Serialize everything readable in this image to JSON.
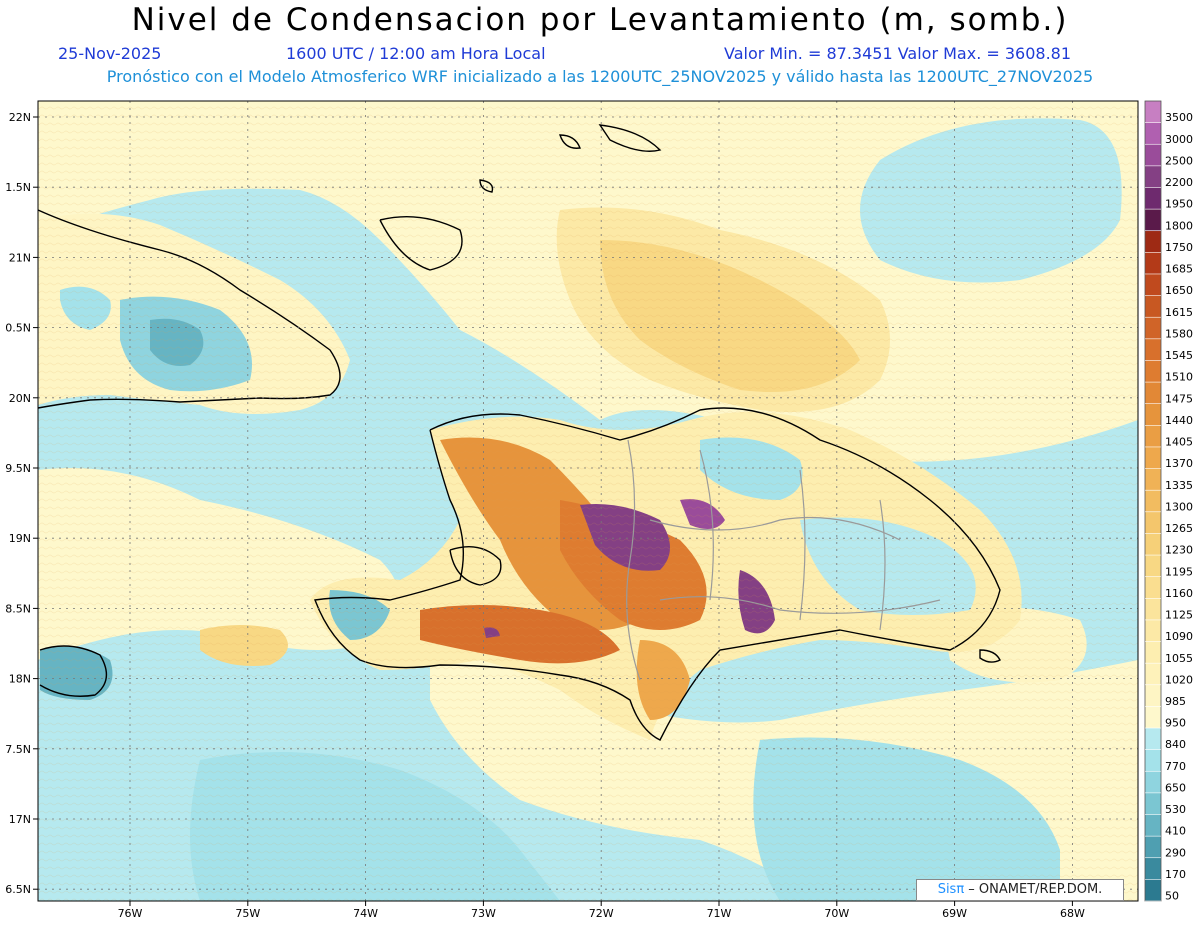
{
  "header": {
    "title": "Nivel de Condensacion por Levantamiento (m, somb.)",
    "date": "25-Nov-2025",
    "time": "1600 UTC / 12:00 am Hora Local",
    "min_max": "Valor Min. = 87.3451   Valor Max. = 3608.81",
    "forecast_line": "Pronóstico con el Modelo Atmosferico WRF inicializado a las 1200UTC_25NOV2025 y válido hasta las  1200UTC_27NOV2025"
  },
  "axes": {
    "lat_labels": [
      "22N",
      "1.5N",
      "21N",
      "0.5N",
      "20N",
      "9.5N",
      "19N",
      "8.5N",
      "18N",
      "7.5N",
      "17N",
      "6.5N"
    ],
    "lon_labels": [
      "76W",
      "75W",
      "74W",
      "73W",
      "72W",
      "71W",
      "70W",
      "69W",
      "68W"
    ]
  },
  "colorbar": {
    "levels": [
      "3500",
      "3000",
      "2500",
      "2200",
      "1950",
      "1800",
      "1750",
      "1685",
      "1650",
      "1615",
      "1580",
      "1545",
      "1510",
      "1475",
      "1440",
      "1405",
      "1370",
      "1335",
      "1300",
      "1265",
      "1230",
      "1195",
      "1160",
      "1125",
      "1090",
      "1055",
      "1020",
      "985",
      "950",
      "840",
      "770",
      "650",
      "530",
      "410",
      "290",
      "170",
      "50"
    ],
    "colors": [
      "#c77fc2",
      "#b060b0",
      "#9a4c9a",
      "#844084",
      "#6e2a6e",
      "#5a1a4a",
      "#9e2a14",
      "#b33a18",
      "#c04a1e",
      "#c85822",
      "#d06428",
      "#d8702c",
      "#de7c30",
      "#e28836",
      "#e6943c",
      "#ea9e44",
      "#eea84c",
      "#f0b256",
      "#f2bc60",
      "#f4c66c",
      "#f6d078",
      "#f8d884",
      "#fade90",
      "#fbe49c",
      "#fce9a6",
      "#fdeeb0",
      "#fef2ba",
      "#fef5c4",
      "#fef8cc",
      "#b6e9ef",
      "#a4e2ea",
      "#8fd4df",
      "#7bc6d2",
      "#66b4c3",
      "#4f9fb1",
      "#3a8a9e",
      "#2c7a90"
    ]
  },
  "credit": {
    "sis": "Sisπ",
    "rest": " – ONAMET/REP.DOM."
  }
}
